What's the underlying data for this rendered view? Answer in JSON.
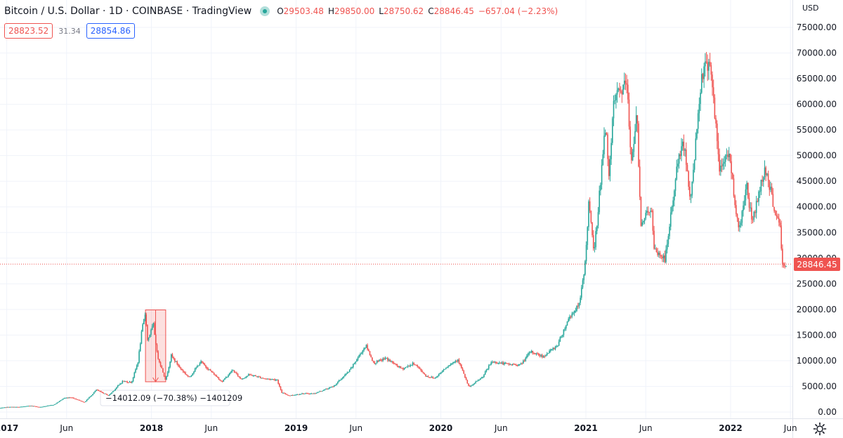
{
  "header": {
    "symbol_title": "Bitcoin / U.S. Dollar · 1D · COINBASE · TradingView",
    "open_label": "O",
    "open": "29503.48",
    "high_label": "H",
    "high": "29850.00",
    "low_label": "L",
    "low": "28750.62",
    "close_label": "C",
    "close": "28846.45",
    "change": "−657.04 (−2.23%)"
  },
  "quotes": {
    "sell": "28823.52",
    "spread": "31.34",
    "buy": "28854.86"
  },
  "currency_label": "USD",
  "last_price_label": "28846.45",
  "measure_label": "−14012.09 (−70.38%) −1401209",
  "colors": {
    "up": "#26a69a",
    "down": "#ef5350",
    "grid": "#f0f3fa",
    "text": "#131722",
    "buy": "#2962ff"
  },
  "chart_data": {
    "type": "candlestick",
    "x_tick_labels": [
      "2017",
      "Jun",
      "2018",
      "Jun",
      "2019",
      "Jun",
      "2020",
      "Jun",
      "2021",
      "Jun",
      "2022",
      "Jun"
    ],
    "x_tick_dates": [
      "2017-01-01",
      "2017-06-01",
      "2018-01-01",
      "2018-06-01",
      "2019-01-01",
      "2019-06-01",
      "2020-01-01",
      "2020-06-01",
      "2021-01-01",
      "2021-06-01",
      "2022-01-01",
      "2022-06-01"
    ],
    "y_tick_labels": [
      "0.00",
      "5000.00",
      "10000.00",
      "15000.00",
      "20000.00",
      "25000.00",
      "30000.00",
      "35000.00",
      "40000.00",
      "45000.00",
      "50000.00",
      "55000.00",
      "60000.00",
      "65000.00",
      "70000.00",
      "75000.00"
    ],
    "y_ticks": [
      0,
      5000,
      10000,
      15000,
      20000,
      25000,
      30000,
      35000,
      40000,
      45000,
      50000,
      55000,
      60000,
      65000,
      70000,
      75000
    ],
    "ylim": [
      0,
      75000
    ],
    "grid": true,
    "last_price": 28846.45,
    "price_points": [
      [
        "2016-12-15",
        780
      ],
      [
        "2017-01-05",
        1000
      ],
      [
        "2017-02-01",
        980
      ],
      [
        "2017-03-03",
        1250
      ],
      [
        "2017-03-25",
        950
      ],
      [
        "2017-05-01",
        1450
      ],
      [
        "2017-05-25",
        2700
      ],
      [
        "2017-06-12",
        2900
      ],
      [
        "2017-07-16",
        1900
      ],
      [
        "2017-08-15",
        4300
      ],
      [
        "2017-09-15",
        3200
      ],
      [
        "2017-10-20",
        6000
      ],
      [
        "2017-11-12",
        5800
      ],
      [
        "2017-11-28",
        9800
      ],
      [
        "2017-12-08",
        16000
      ],
      [
        "2017-12-17",
        19500
      ],
      [
        "2017-12-22",
        14000
      ],
      [
        "2018-01-06",
        17000
      ],
      [
        "2018-01-16",
        11000
      ],
      [
        "2018-02-06",
        6200
      ],
      [
        "2018-02-20",
        11000
      ],
      [
        "2018-03-15",
        8500
      ],
      [
        "2018-04-06",
        6700
      ],
      [
        "2018-05-05",
        9800
      ],
      [
        "2018-06-28",
        5900
      ],
      [
        "2018-07-25",
        8200
      ],
      [
        "2018-08-15",
        6400
      ],
      [
        "2018-09-05",
        7300
      ],
      [
        "2018-10-15",
        6500
      ],
      [
        "2018-11-14",
        6300
      ],
      [
        "2018-11-25",
        3800
      ],
      [
        "2018-12-15",
        3200
      ],
      [
        "2019-01-15",
        3600
      ],
      [
        "2019-02-15",
        3600
      ],
      [
        "2019-04-05",
        5000
      ],
      [
        "2019-05-15",
        8000
      ],
      [
        "2019-06-26",
        13000
      ],
      [
        "2019-07-16",
        9500
      ],
      [
        "2019-08-15",
        10500
      ],
      [
        "2019-09-25",
        8400
      ],
      [
        "2019-10-26",
        9500
      ],
      [
        "2019-11-25",
        7000
      ],
      [
        "2019-12-17",
        6600
      ],
      [
        "2020-01-15",
        8800
      ],
      [
        "2020-02-13",
        10300
      ],
      [
        "2020-03-12",
        4800
      ],
      [
        "2020-04-15",
        6800
      ],
      [
        "2020-05-08",
        9800
      ],
      [
        "2020-06-20",
        9300
      ],
      [
        "2020-07-20",
        9200
      ],
      [
        "2020-08-15",
        11800
      ],
      [
        "2020-09-15",
        10800
      ],
      [
        "2020-10-21",
        13000
      ],
      [
        "2020-11-20",
        18500
      ],
      [
        "2020-12-16",
        21000
      ],
      [
        "2020-12-30",
        29000
      ],
      [
        "2021-01-08",
        40500
      ],
      [
        "2021-01-22",
        31000
      ],
      [
        "2021-02-08",
        46000
      ],
      [
        "2021-02-21",
        57000
      ],
      [
        "2021-02-28",
        45000
      ],
      [
        "2021-03-13",
        61000
      ],
      [
        "2021-04-14",
        64000
      ],
      [
        "2021-04-25",
        49000
      ],
      [
        "2021-05-10",
        58000
      ],
      [
        "2021-05-19",
        37000
      ],
      [
        "2021-06-15",
        40000
      ],
      [
        "2021-06-22",
        31500
      ],
      [
        "2021-07-20",
        29800
      ],
      [
        "2021-08-22",
        49500
      ],
      [
        "2021-09-07",
        52500
      ],
      [
        "2021-09-21",
        40500
      ],
      [
        "2021-10-20",
        66000
      ],
      [
        "2021-11-10",
        68800
      ],
      [
        "2021-12-04",
        47000
      ],
      [
        "2021-12-27",
        51000
      ],
      [
        "2022-01-22",
        35000
      ],
      [
        "2022-02-10",
        44500
      ],
      [
        "2022-02-24",
        37000
      ],
      [
        "2022-03-29",
        47800
      ],
      [
        "2022-04-25",
        38500
      ],
      [
        "2022-05-06",
        36000
      ],
      [
        "2022-05-12",
        28500
      ],
      [
        "2022-05-23",
        28846
      ]
    ],
    "measurement": {
      "from_date": "2017-12-17",
      "to_date": "2018-02-06",
      "from_price": 19910,
      "to_price": 5898
    }
  }
}
